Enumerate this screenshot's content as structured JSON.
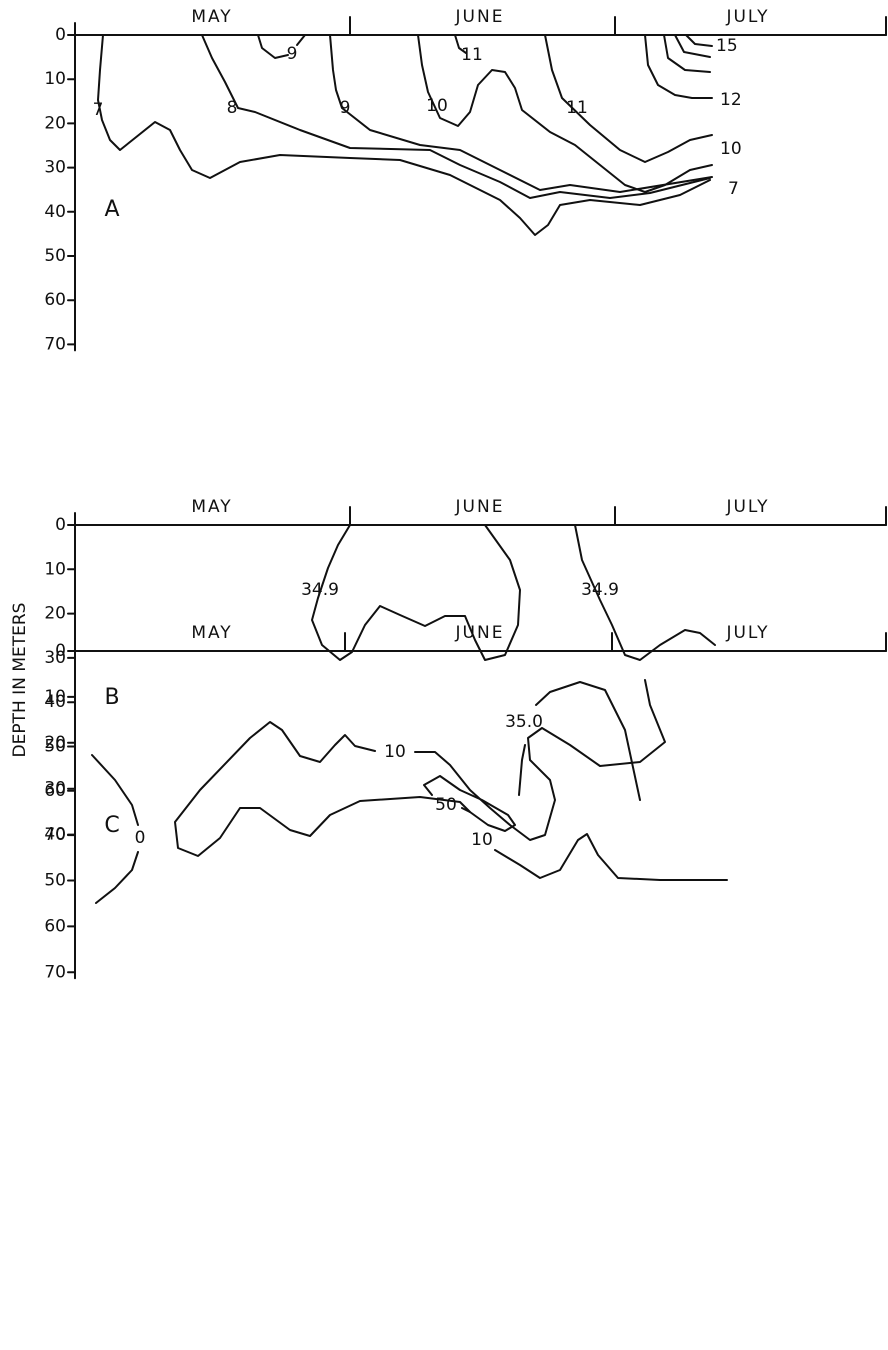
{
  "y_axis_label": "DEPTH IN METERS",
  "panels": [
    {
      "label": "A",
      "months": [
        "MAY",
        "JUNE",
        "JULY"
      ],
      "yticks": [
        0,
        10,
        20,
        30,
        40,
        50,
        60,
        70
      ],
      "contour_labels": [
        "7",
        "8",
        "9",
        "9",
        "10",
        "11",
        "11",
        "12",
        "15",
        "10",
        "7"
      ]
    },
    {
      "label": "B",
      "months": [
        "MAY",
        "JUNE",
        "JULY"
      ],
      "yticks": [
        0,
        10,
        20,
        30,
        40,
        50,
        60,
        70
      ],
      "contour_labels": [
        "34.9",
        "34.9",
        "35.0"
      ]
    },
    {
      "label": "C",
      "months": [
        "MAY",
        "JUNE",
        "JULY"
      ],
      "yticks": [
        0,
        10,
        20,
        30,
        40,
        50,
        60,
        70
      ],
      "contour_labels": [
        "0",
        "10",
        "50",
        "10"
      ]
    }
  ]
}
